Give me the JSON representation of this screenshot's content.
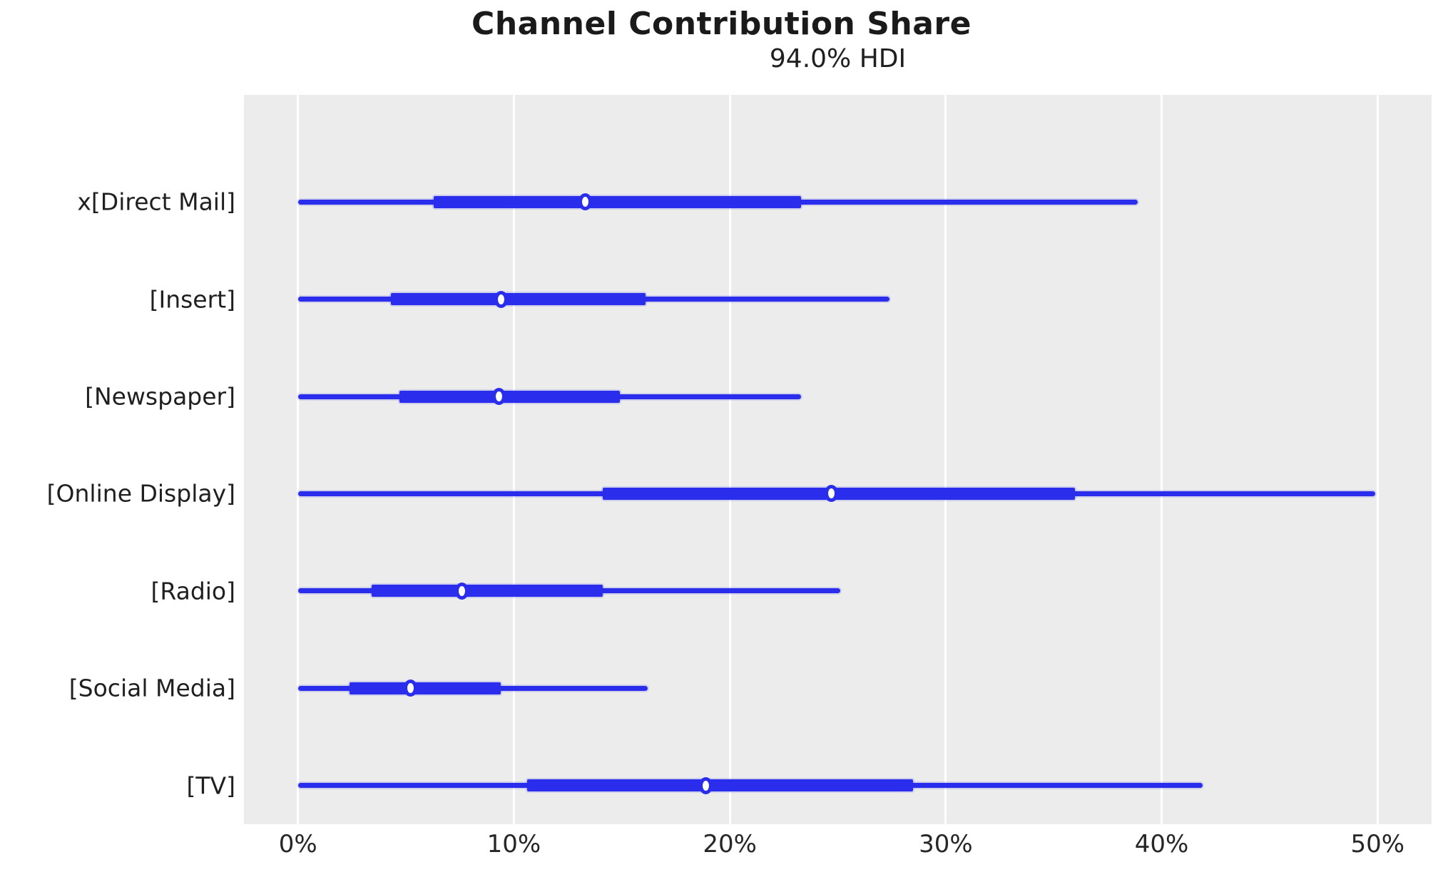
{
  "title": "Channel Contribution Share",
  "subtitle": "94.0% HDI",
  "colors": {
    "line": "#2a2eec",
    "plot_background": "#ececec",
    "gridline": "#ffffff",
    "text": "#1f1f1f"
  },
  "chart_data": {
    "type": "forest",
    "title": "Channel Contribution Share",
    "subtitle": "94.0% HDI",
    "orientation": "horizontal",
    "grid": true,
    "legend": false,
    "unit": "percent",
    "xlim": [
      -2.5,
      52.5
    ],
    "x_tick_values": [
      0,
      10,
      20,
      30,
      40,
      50
    ],
    "x_tick_labels": [
      "0%",
      "10%",
      "20%",
      "30%",
      "40%",
      "50%"
    ],
    "rows": [
      {
        "label": "x[Direct Mail]",
        "hdi_low": 0.0,
        "band_low": 6.3,
        "point": 13.3,
        "band_high": 23.3,
        "hdi_high": 38.9
      },
      {
        "label": "[Insert]",
        "hdi_low": 0.0,
        "band_low": 4.3,
        "point": 9.4,
        "band_high": 16.1,
        "hdi_high": 27.4
      },
      {
        "label": "[Newspaper]",
        "hdi_low": 0.0,
        "band_low": 4.7,
        "point": 9.3,
        "band_high": 14.9,
        "hdi_high": 23.3
      },
      {
        "label": "[Online Display]",
        "hdi_low": 0.0,
        "band_low": 14.1,
        "point": 24.7,
        "band_high": 36.0,
        "hdi_high": 49.9
      },
      {
        "label": "[Radio]",
        "hdi_low": 0.0,
        "band_low": 3.4,
        "point": 7.6,
        "band_high": 14.1,
        "hdi_high": 25.1
      },
      {
        "label": "[Social Media]",
        "hdi_low": 0.0,
        "band_low": 2.4,
        "point": 5.2,
        "band_high": 9.4,
        "hdi_high": 16.2
      },
      {
        "label": "[TV]",
        "hdi_low": 0.0,
        "band_low": 10.6,
        "point": 18.9,
        "band_high": 28.5,
        "hdi_high": 41.9
      }
    ],
    "row_layout": {
      "first_row_top_pct": 14.7,
      "row_step_pct": 13.33
    }
  }
}
